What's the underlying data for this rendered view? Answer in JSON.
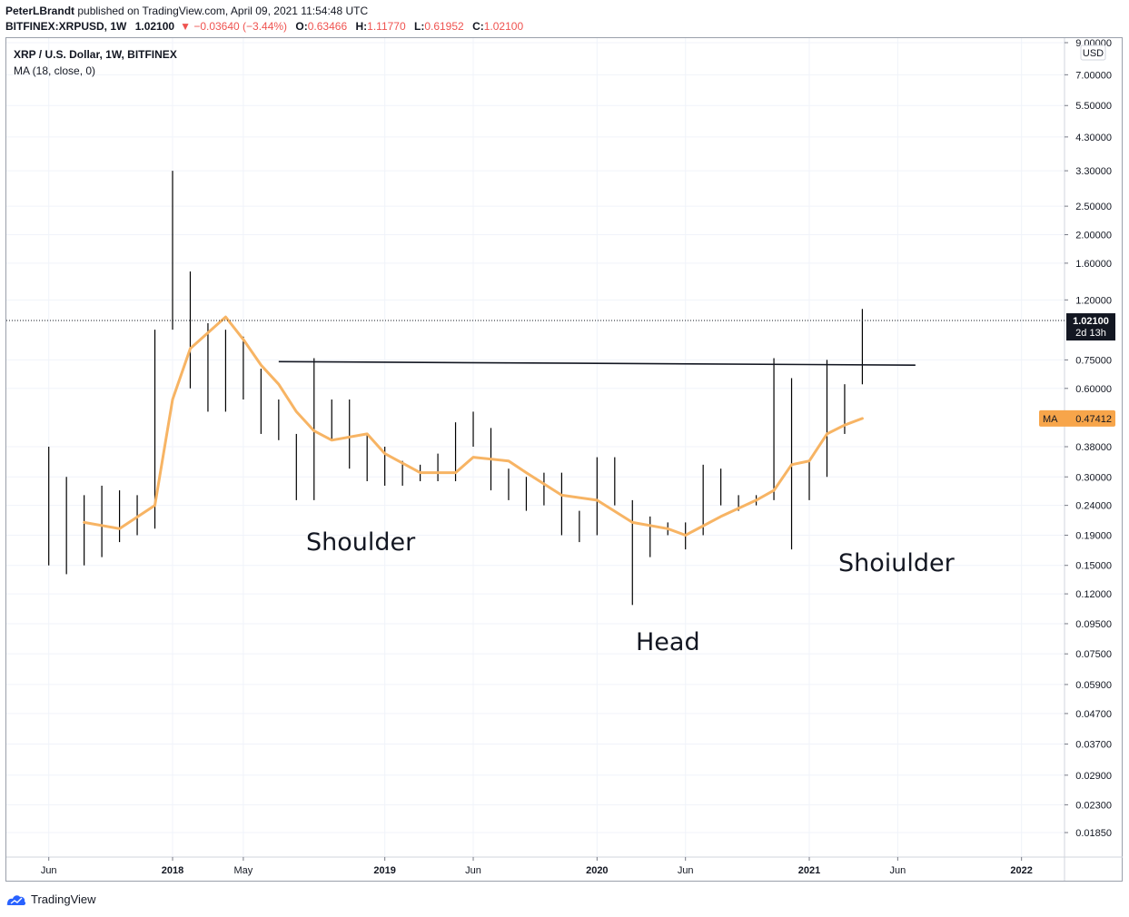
{
  "header": {
    "publisher": "PeterLBrandt",
    "published_text": "published on TradingView.com, April 09, 2021 11:54:48 UTC",
    "symbol": "BITFINEX:XRPUSD, 1W",
    "last": "1.02100",
    "change": "−0.03640 (−3.44%)",
    "o_label": "O:",
    "o": "0.63466",
    "h_label": "H:",
    "h": "1.11770",
    "l_label": "L:",
    "l": "0.61952",
    "c_label": "C:",
    "c": "1.02100"
  },
  "legend": {
    "title": "XRP / U.S. Dollar, 1W, BITFINEX",
    "ma": "MA (18, close, 0)"
  },
  "price_scale": {
    "unit": "USD",
    "last_price": "1.02100",
    "countdown": "2d 13h",
    "ma_label": "MA",
    "ma_value": "0.47412"
  },
  "annotations": {
    "left_shoulder": "Shoulder",
    "head": "Head",
    "right_shoulder": "Shoiulder"
  },
  "footer": {
    "brand": "TradingView"
  },
  "colors": {
    "ma": "#f7b464",
    "bars": "#000000",
    "neckline": "#131722",
    "grid": "#f0f3fa",
    "down": "#ef5350"
  },
  "chart_data": {
    "type": "line",
    "scale": "log",
    "y_ticks": [
      9.0,
      7.0,
      5.5,
      4.3,
      3.3,
      2.5,
      2.0,
      1.6,
      1.2,
      0.75,
      0.6,
      0.38,
      0.3,
      0.24,
      0.19,
      0.15,
      0.12,
      0.095,
      0.075,
      0.059,
      0.047,
      0.037,
      0.029,
      0.023,
      0.0185
    ],
    "y_tick_labels": [
      "9.00000",
      "7.00000",
      "5.50000",
      "4.30000",
      "3.30000",
      "2.50000",
      "2.00000",
      "1.60000",
      "1.20000",
      "0.75000",
      "0.60000",
      "0.38000",
      "0.30000",
      "0.24000",
      "0.19000",
      "0.15000",
      "0.12000",
      "0.09500",
      "0.07500",
      "0.05900",
      "0.04700",
      "0.03700",
      "0.02900",
      "0.02300",
      "0.01850"
    ],
    "x_tick_labels": [
      "Jun",
      "2018",
      "May",
      "2019",
      "Jun",
      "2020",
      "Jun",
      "2021",
      "Jun",
      "2022"
    ],
    "x_tick_bold": [
      false,
      true,
      false,
      true,
      false,
      true,
      false,
      true,
      false,
      true
    ],
    "neckline": {
      "start": [
        "2018-07",
        0.74
      ],
      "end": [
        "2021-07",
        0.72
      ]
    },
    "ma_series": [
      [
        "2017-08",
        0.21
      ],
      [
        "2017-10",
        0.2
      ],
      [
        "2017-12",
        0.24
      ],
      [
        "2018-01",
        0.55
      ],
      [
        "2018-02",
        0.82
      ],
      [
        "2018-04",
        1.05
      ],
      [
        "2018-05",
        0.88
      ],
      [
        "2018-06",
        0.72
      ],
      [
        "2018-07",
        0.62
      ],
      [
        "2018-08",
        0.5
      ],
      [
        "2018-09",
        0.43
      ],
      [
        "2018-10",
        0.4
      ],
      [
        "2018-12",
        0.42
      ],
      [
        "2019-01",
        0.36
      ],
      [
        "2019-03",
        0.31
      ],
      [
        "2019-05",
        0.31
      ],
      [
        "2019-06",
        0.35
      ],
      [
        "2019-08",
        0.34
      ],
      [
        "2019-09",
        0.31
      ],
      [
        "2019-11",
        0.26
      ],
      [
        "2020-01",
        0.25
      ],
      [
        "2020-03",
        0.21
      ],
      [
        "2020-05",
        0.2
      ],
      [
        "2020-06",
        0.19
      ],
      [
        "2020-08",
        0.22
      ],
      [
        "2020-10",
        0.25
      ],
      [
        "2020-11",
        0.27
      ],
      [
        "2020-12",
        0.33
      ],
      [
        "2021-01",
        0.34
      ],
      [
        "2021-02",
        0.42
      ],
      [
        "2021-03",
        0.45
      ],
      [
        "2021-04",
        0.47412
      ]
    ],
    "price_bars": [
      [
        "2017-06",
        0.38,
        0.15
      ],
      [
        "2017-07",
        0.3,
        0.14
      ],
      [
        "2017-08",
        0.26,
        0.15
      ],
      [
        "2017-09",
        0.28,
        0.16
      ],
      [
        "2017-10",
        0.27,
        0.18
      ],
      [
        "2017-11",
        0.26,
        0.19
      ],
      [
        "2017-12",
        0.95,
        0.2
      ],
      [
        "2018-01",
        3.3,
        0.95
      ],
      [
        "2018-02",
        1.5,
        0.6
      ],
      [
        "2018-03",
        1.0,
        0.5
      ],
      [
        "2018-04",
        0.95,
        0.5
      ],
      [
        "2018-05",
        0.9,
        0.55
      ],
      [
        "2018-06",
        0.7,
        0.42
      ],
      [
        "2018-07",
        0.55,
        0.4
      ],
      [
        "2018-08",
        0.42,
        0.25
      ],
      [
        "2018-09",
        0.76,
        0.25
      ],
      [
        "2018-10",
        0.55,
        0.4
      ],
      [
        "2018-11",
        0.55,
        0.32
      ],
      [
        "2018-12",
        0.42,
        0.29
      ],
      [
        "2019-01",
        0.38,
        0.28
      ],
      [
        "2019-02",
        0.34,
        0.28
      ],
      [
        "2019-03",
        0.33,
        0.29
      ],
      [
        "2019-04",
        0.36,
        0.29
      ],
      [
        "2019-05",
        0.46,
        0.29
      ],
      [
        "2019-06",
        0.5,
        0.38
      ],
      [
        "2019-07",
        0.44,
        0.27
      ],
      [
        "2019-08",
        0.32,
        0.25
      ],
      [
        "2019-09",
        0.3,
        0.23
      ],
      [
        "2019-10",
        0.31,
        0.24
      ],
      [
        "2019-11",
        0.31,
        0.19
      ],
      [
        "2019-12",
        0.23,
        0.18
      ],
      [
        "2020-01",
        0.35,
        0.19
      ],
      [
        "2020-02",
        0.35,
        0.24
      ],
      [
        "2020-03",
        0.25,
        0.11
      ],
      [
        "2020-04",
        0.22,
        0.16
      ],
      [
        "2020-05",
        0.21,
        0.19
      ],
      [
        "2020-06",
        0.21,
        0.17
      ],
      [
        "2020-07",
        0.33,
        0.19
      ],
      [
        "2020-08",
        0.32,
        0.24
      ],
      [
        "2020-09",
        0.26,
        0.23
      ],
      [
        "2020-10",
        0.26,
        0.24
      ],
      [
        "2020-11",
        0.76,
        0.25
      ],
      [
        "2020-12",
        0.65,
        0.17
      ],
      [
        "2021-01",
        0.34,
        0.25
      ],
      [
        "2021-02",
        0.75,
        0.3
      ],
      [
        "2021-03",
        0.62,
        0.42
      ],
      [
        "2021-04",
        1.1177,
        0.61952
      ]
    ]
  }
}
